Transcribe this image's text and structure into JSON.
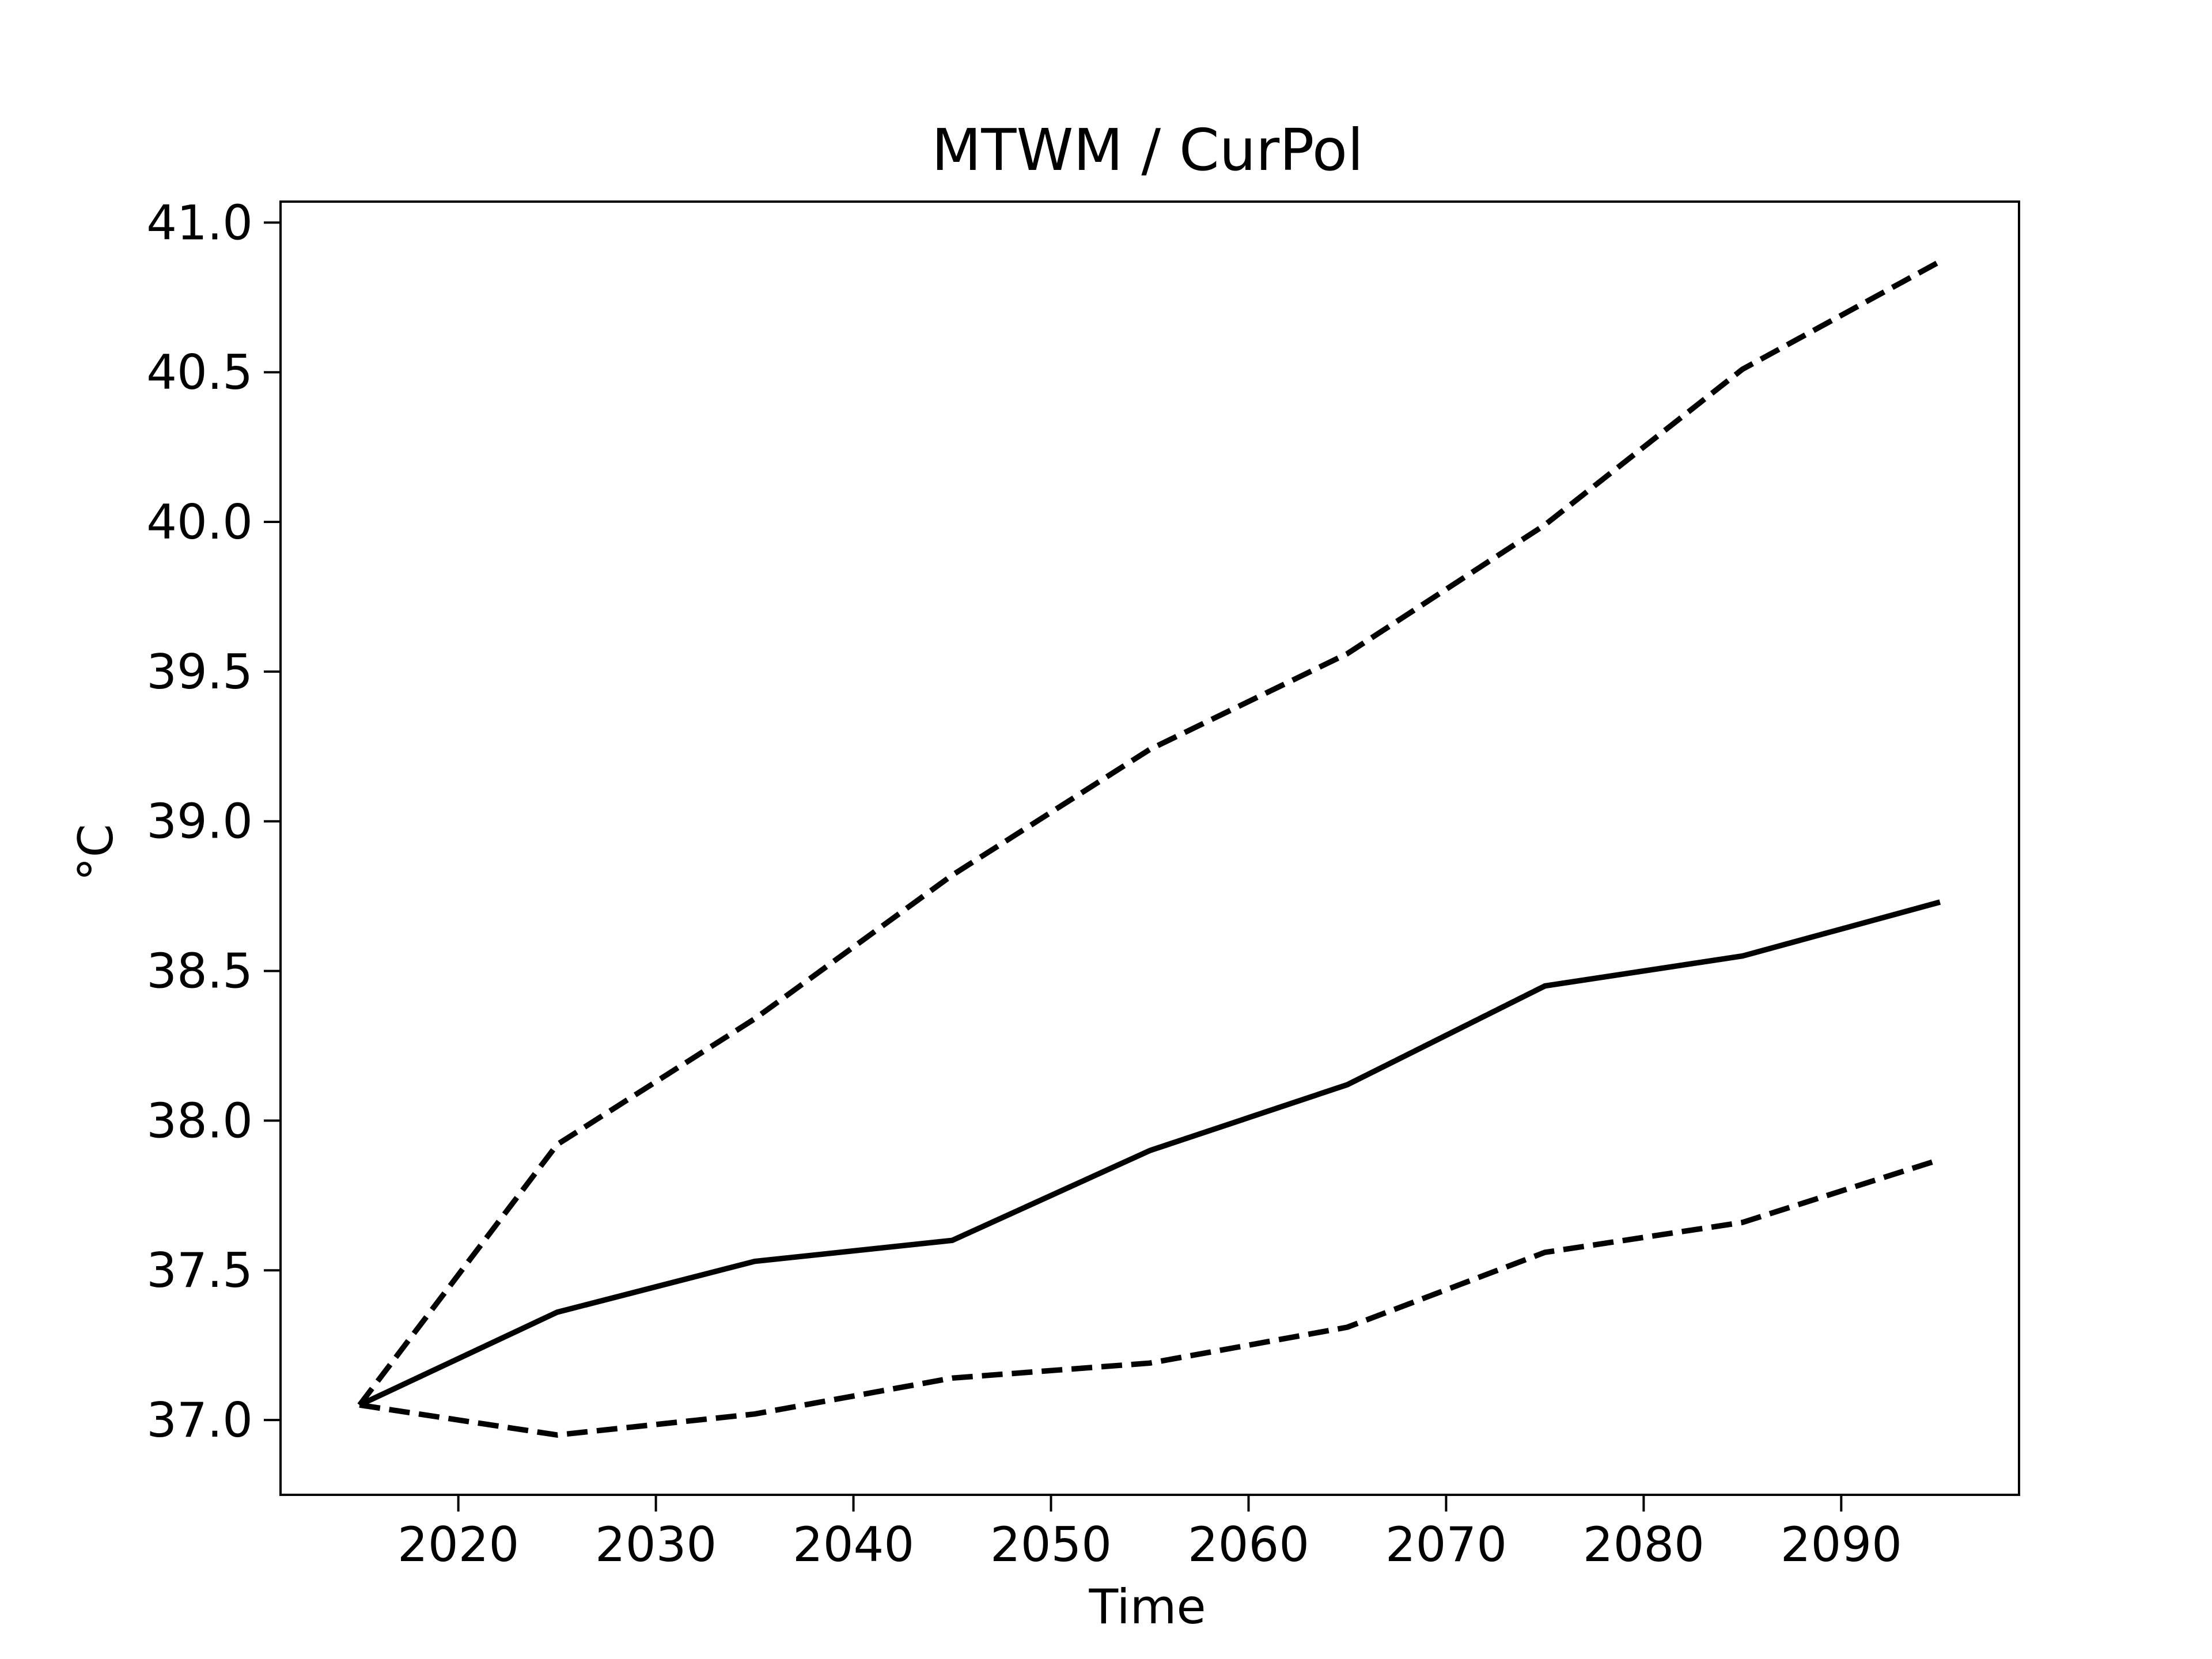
{
  "chart_data": {
    "type": "line",
    "title": "MTWM / CurPol",
    "xlabel": "Time",
    "ylabel": "°C",
    "x": [
      2015,
      2025,
      2035,
      2045,
      2055,
      2065,
      2075,
      2085,
      2095
    ],
    "series": [
      {
        "style": "solid",
        "color": "#000000",
        "values": [
          37.05,
          37.36,
          37.53,
          37.6,
          37.9,
          38.12,
          38.45,
          38.55,
          38.73
        ]
      },
      {
        "style": "dashed",
        "color": "#000000",
        "values": [
          37.05,
          37.92,
          38.34,
          38.82,
          39.24,
          39.56,
          39.99,
          40.51,
          40.87
        ]
      },
      {
        "style": "dashed",
        "color": "#000000",
        "values": [
          37.05,
          36.95,
          37.02,
          37.14,
          37.19,
          37.31,
          37.56,
          37.66,
          37.87
        ]
      }
    ],
    "xlim": [
      2011,
      2099
    ],
    "ylim": [
      36.75,
      41.07
    ],
    "xticks": [
      2020,
      2030,
      2040,
      2050,
      2060,
      2070,
      2080,
      2090
    ],
    "xtick_labels": [
      "2020",
      "2030",
      "2040",
      "2050",
      "2060",
      "2070",
      "2080",
      "2090"
    ],
    "yticks": [
      37.0,
      37.5,
      38.0,
      38.5,
      39.0,
      39.5,
      40.0,
      40.5,
      41.0
    ],
    "ytick_labels": [
      "37.0",
      "37.5",
      "38.0",
      "38.5",
      "39.0",
      "39.5",
      "40.0",
      "40.5",
      "41.0"
    ],
    "grid": false,
    "legend": false
  }
}
